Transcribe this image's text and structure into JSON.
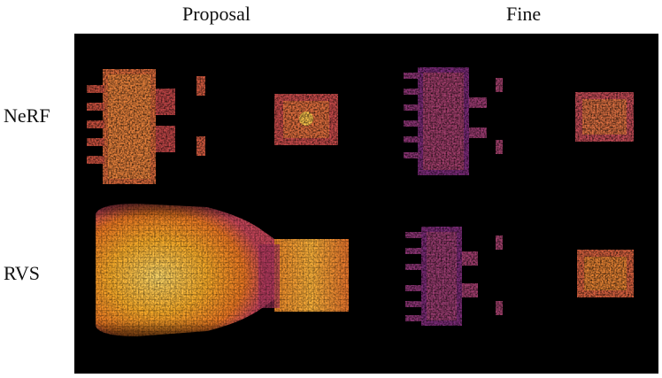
{
  "columns": {
    "proposal": "Proposal",
    "fine": "Fine"
  },
  "rows": {
    "nerf": "NeRF",
    "rvs": "RVS"
  },
  "colormap": [
    "#000004",
    "#1b0c41",
    "#4a0c6b",
    "#781c6d",
    "#a52c60",
    "#cf4446",
    "#ed6925",
    "#fb9b06",
    "#f7d13d",
    "#fcffa4"
  ]
}
